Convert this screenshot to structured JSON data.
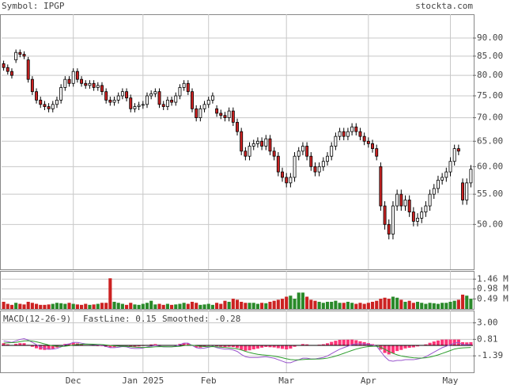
{
  "header": {
    "symbol": "Symbol: IPGP",
    "site": "stockta.com"
  },
  "chart_data": [
    {
      "type": "candlestick",
      "log_scale": true,
      "grid": true,
      "up_color": "#ffffff",
      "down_color": "#cc2222",
      "xlim": [
        -0.5,
        114.5
      ],
      "ylim": [
        43.4,
        97
      ],
      "yticks": [
        {
          "value": 90,
          "label": "90.00"
        },
        {
          "value": 85,
          "label": "85.00"
        },
        {
          "value": 80,
          "label": "80.00"
        },
        {
          "value": 75,
          "label": "75.00"
        },
        {
          "value": 70,
          "label": "70.00"
        },
        {
          "value": 65,
          "label": "65.00"
        },
        {
          "value": 60,
          "label": "60.00"
        },
        {
          "value": 55,
          "label": "55.00"
        },
        {
          "value": 50,
          "label": "50.00"
        }
      ],
      "open": [
        83,
        82,
        81,
        84,
        86,
        85.5,
        84,
        79,
        76,
        74,
        73,
        72.5,
        72,
        73,
        74,
        77,
        79,
        78,
        81,
        79,
        78,
        77.5,
        78,
        77,
        77.5,
        76,
        74,
        73.5,
        74,
        75,
        76,
        74.5,
        72,
        72.5,
        72.8,
        73,
        75,
        75.5,
        76,
        73,
        72.5,
        74,
        73.5,
        75,
        77,
        78,
        76,
        72,
        70,
        72,
        73,
        74,
        72,
        71,
        70.5,
        70,
        71.5,
        69,
        67,
        63,
        62,
        64,
        64.5,
        65,
        64,
        65.5,
        63,
        62,
        59,
        58,
        57,
        58,
        62,
        63,
        64,
        62,
        60,
        59,
        60,
        61,
        62,
        64,
        66,
        67,
        66,
        67,
        68,
        67,
        66,
        65,
        64.5,
        63.5,
        60,
        53,
        50,
        48.5,
        53,
        55,
        53,
        54,
        52,
        50.5,
        51,
        52,
        53,
        55,
        56,
        57.5,
        58,
        59,
        61,
        63.5,
        57,
        54,
        57
      ],
      "high": [
        83.8,
        82.8,
        81.8,
        86.8,
        86.8,
        86.3,
        84.8,
        79.8,
        76.8,
        74.8,
        73.8,
        73.3,
        73.8,
        74.8,
        77.8,
        79.8,
        79.8,
        81.8,
        81.8,
        79.8,
        78.8,
        78.8,
        78.8,
        78.3,
        78.3,
        76.8,
        74.8,
        74.8,
        75.8,
        76.8,
        76.8,
        75.3,
        73.3,
        73.6,
        73.8,
        75.8,
        76.3,
        76.8,
        76.8,
        73.8,
        74.8,
        74.8,
        75.8,
        77.8,
        78.8,
        78.8,
        76.8,
        72.8,
        72.8,
        73.8,
        74.8,
        75.8,
        72.8,
        71.8,
        71.3,
        72.3,
        72.3,
        69.8,
        67.8,
        63.8,
        64.8,
        65.3,
        65.8,
        65.8,
        66.3,
        66.3,
        63.8,
        62.8,
        59.8,
        58.8,
        58.8,
        62.8,
        63.8,
        64.8,
        64.8,
        62.8,
        60.8,
        60.8,
        61.8,
        62.8,
        64.8,
        66.8,
        67.8,
        67.8,
        67.8,
        68.8,
        68.8,
        67.8,
        66.8,
        65.8,
        65.3,
        64.3,
        60.8,
        53.8,
        50.8,
        53.8,
        55.8,
        55.8,
        54.8,
        54.8,
        52.8,
        51.8,
        52.8,
        53.8,
        55.8,
        56.8,
        58.3,
        58.8,
        59.8,
        61.8,
        64.3,
        64.3,
        57.8,
        57.8,
        60.3
      ],
      "low": [
        81.2,
        80.2,
        79.2,
        83.2,
        84.7,
        84.2,
        78.2,
        75.2,
        73.2,
        72.2,
        71.7,
        71.2,
        71.2,
        72.2,
        73.2,
        76.2,
        77.2,
        77.2,
        78.2,
        77.2,
        76.7,
        76.7,
        76.2,
        76.2,
        75.2,
        73.2,
        72.7,
        72.7,
        73.2,
        74.2,
        73.7,
        71.2,
        71.2,
        71.7,
        72.0,
        72.2,
        74.2,
        74.7,
        72.2,
        71.7,
        71.7,
        72.7,
        72.7,
        74.2,
        76.2,
        75.2,
        71.2,
        69.2,
        69.2,
        71.2,
        72.2,
        73.2,
        70.2,
        69.7,
        69.2,
        69.2,
        68.2,
        66.2,
        62.2,
        61.2,
        61.2,
        63.2,
        63.7,
        63.2,
        63.2,
        62.2,
        61.2,
        58.2,
        57.2,
        56.2,
        56.2,
        57.2,
        61.2,
        62.2,
        61.2,
        59.2,
        58.2,
        58.2,
        59.2,
        60.2,
        61.2,
        63.2,
        65.2,
        65.2,
        65.2,
        66.2,
        66.2,
        65.2,
        64.2,
        63.7,
        62.7,
        61.2,
        52.2,
        49.2,
        47.7,
        47.7,
        52.2,
        52.2,
        52.2,
        51.2,
        49.7,
        49.7,
        50.2,
        51.2,
        52.2,
        54.2,
        55.2,
        56.7,
        57.2,
        58.2,
        60.2,
        62.2,
        53.2,
        53.2,
        56.2
      ],
      "close": [
        82,
        81,
        80,
        86,
        85.5,
        85,
        79,
        76,
        74,
        73,
        72.5,
        72,
        73,
        74,
        77,
        79,
        78,
        81,
        79,
        78,
        77.5,
        78,
        77,
        77.5,
        76,
        74,
        73.5,
        74,
        75,
        76,
        74.5,
        72,
        72.5,
        72.8,
        73,
        75,
        75.5,
        76,
        73,
        72.5,
        74,
        73.5,
        75,
        77,
        78,
        76,
        72,
        70,
        72,
        73,
        74,
        75,
        71,
        70.5,
        70,
        71.5,
        69,
        67,
        63,
        62,
        64,
        64.5,
        65,
        64,
        65.5,
        63,
        62,
        59,
        58,
        57,
        58,
        62,
        63,
        64,
        62,
        60,
        59,
        60,
        61,
        62,
        64,
        66,
        67,
        66,
        67,
        68,
        67,
        66,
        65,
        64.5,
        63.5,
        62,
        53,
        50,
        48.5,
        53,
        55,
        53,
        54,
        52,
        50.5,
        51,
        52,
        53,
        55,
        56,
        57.5,
        58,
        59,
        61,
        63.5,
        63,
        54,
        57,
        59.5
      ]
    },
    {
      "type": "bar",
      "up_color": "#2a8a2a",
      "down_color": "#cc2222",
      "xlim": [
        -0.5,
        114.5
      ],
      "ylim": [
        0,
        1.86
      ],
      "yticks": [
        {
          "value": 1.46,
          "label": "1.46 M"
        },
        {
          "value": 0.98,
          "label": "0.98 M"
        },
        {
          "value": 0.49,
          "label": "0.49 M"
        }
      ],
      "values": [
        0.35,
        0.25,
        0.2,
        0.3,
        0.25,
        0.22,
        0.35,
        0.3,
        0.25,
        0.2,
        0.2,
        0.22,
        0.25,
        0.3,
        0.28,
        0.25,
        0.3,
        0.25,
        0.22,
        0.2,
        0.25,
        0.2,
        0.22,
        0.25,
        0.3,
        0.3,
        1.5,
        0.35,
        0.3,
        0.25,
        0.2,
        0.3,
        0.22,
        0.2,
        0.25,
        0.3,
        0.4,
        0.22,
        0.25,
        0.2,
        0.25,
        0.2,
        0.22,
        0.25,
        0.3,
        0.25,
        0.35,
        0.3,
        0.2,
        0.22,
        0.25,
        0.2,
        0.3,
        0.25,
        0.4,
        0.35,
        0.5,
        0.45,
        0.35,
        0.3,
        0.3,
        0.3,
        0.25,
        0.3,
        0.28,
        0.35,
        0.4,
        0.45,
        0.5,
        0.6,
        0.65,
        0.5,
        0.8,
        0.8,
        0.6,
        0.45,
        0.4,
        0.35,
        0.3,
        0.35,
        0.35,
        0.4,
        0.3,
        0.3,
        0.35,
        0.3,
        0.25,
        0.3,
        0.25,
        0.3,
        0.35,
        0.4,
        0.5,
        0.55,
        0.5,
        0.6,
        0.55,
        0.45,
        0.35,
        0.4,
        0.3,
        0.35,
        0.3,
        0.25,
        0.3,
        0.28,
        0.25,
        0.3,
        0.3,
        0.35,
        0.4,
        0.45,
        0.7,
        0.65,
        0.5
      ]
    },
    {
      "type": "line",
      "title": "MACD(12-26-9)",
      "histogram_color": "#ff3377",
      "xlim": [
        -0.5,
        114.5
      ],
      "ylim": [
        -3.58,
        4.64
      ],
      "yticks": [
        {
          "value": 3,
          "label": "3.00"
        },
        {
          "value": 0.81,
          "label": "0.81"
        },
        {
          "value": -1.39,
          "label": "-1.39"
        }
      ],
      "xticks": [
        {
          "value": 17,
          "label": "Dec"
        },
        {
          "value": 34,
          "label": "Jan 2025"
        },
        {
          "value": 50,
          "label": "Feb"
        },
        {
          "value": 69,
          "label": "Mar"
        },
        {
          "value": 89,
          "label": "Apr"
        },
        {
          "value": 109,
          "label": "May"
        }
      ],
      "series": [
        {
          "name": "FastLine: 0.15",
          "color": "#9955cc",
          "values": [
            0.6,
            0.5,
            0.4,
            0.6,
            0.8,
            0.9,
            0.7,
            0.4,
            0.1,
            -0.2,
            -0.4,
            -0.5,
            -0.5,
            -0.4,
            -0.2,
            0.1,
            0.2,
            0.4,
            0.4,
            0.3,
            0.2,
            0.15,
            0.1,
            0.05,
            0,
            -0.15,
            -0.3,
            -0.3,
            -0.25,
            -0.15,
            -0.2,
            -0.35,
            -0.4,
            -0.4,
            -0.35,
            -0.2,
            -0.1,
            0,
            -0.1,
            -0.2,
            -0.2,
            -0.2,
            -0.1,
            0.1,
            0.3,
            0.3,
            0,
            -0.3,
            -0.4,
            -0.35,
            -0.25,
            -0.1,
            -0.3,
            -0.4,
            -0.5,
            -0.5,
            -0.6,
            -0.8,
            -1.2,
            -1.5,
            -1.6,
            -1.6,
            -1.6,
            -1.55,
            -1.5,
            -1.6,
            -1.7,
            -1.9,
            -2.1,
            -2.3,
            -2.3,
            -2.1,
            -1.9,
            -1.7,
            -1.7,
            -1.8,
            -1.8,
            -1.7,
            -1.6,
            -1.4,
            -1.1,
            -0.8,
            -0.5,
            -0.3,
            -0.1,
            0.1,
            0.2,
            0.2,
            0.2,
            0.15,
            0.05,
            -0.1,
            -0.8,
            -1.5,
            -2,
            -2.1,
            -2,
            -2,
            -1.9,
            -1.9,
            -1.9,
            -1.8,
            -1.7,
            -1.5,
            -1.2,
            -0.9,
            -0.6,
            -0.3,
            -0.1,
            0.1,
            0.3,
            0.4,
            0.1,
            0.1,
            0.15
          ]
        },
        {
          "name": "Smoothed: -0.28",
          "color": "#2e9e2e",
          "values": [
            0.3,
            0.35,
            0.37,
            0.4,
            0.5,
            0.6,
            0.62,
            0.58,
            0.48,
            0.35,
            0.2,
            0.06,
            -0.05,
            -0.12,
            -0.14,
            -0.1,
            -0.04,
            0.05,
            0.12,
            0.16,
            0.17,
            0.17,
            0.16,
            0.14,
            0.11,
            0.06,
            0,
            -0.06,
            -0.1,
            -0.11,
            -0.13,
            -0.17,
            -0.22,
            -0.26,
            -0.28,
            -0.26,
            -0.23,
            -0.18,
            -0.17,
            -0.17,
            -0.18,
            -0.18,
            -0.16,
            -0.11,
            -0.03,
            0.04,
            0.03,
            -0.04,
            -0.11,
            -0.16,
            -0.18,
            -0.16,
            -0.19,
            -0.23,
            -0.28,
            -0.32,
            -0.38,
            -0.46,
            -0.61,
            -0.79,
            -0.95,
            -1.08,
            -1.18,
            -1.25,
            -1.3,
            -1.36,
            -1.43,
            -1.53,
            -1.64,
            -1.77,
            -1.88,
            -1.92,
            -1.92,
            -1.88,
            -1.84,
            -1.83,
            -1.82,
            -1.8,
            -1.76,
            -1.69,
            -1.57,
            -1.42,
            -1.24,
            -1.05,
            -0.86,
            -0.67,
            -0.49,
            -0.35,
            -0.24,
            -0.16,
            -0.12,
            -0.12,
            -0.25,
            -0.5,
            -0.8,
            -1.06,
            -1.25,
            -1.4,
            -1.5,
            -1.58,
            -1.64,
            -1.67,
            -1.68,
            -1.64,
            -1.55,
            -1.42,
            -1.26,
            -1.07,
            -0.88,
            -0.68,
            -0.48,
            -0.38,
            -0.33,
            -0.3,
            -0.28
          ]
        }
      ]
    }
  ]
}
